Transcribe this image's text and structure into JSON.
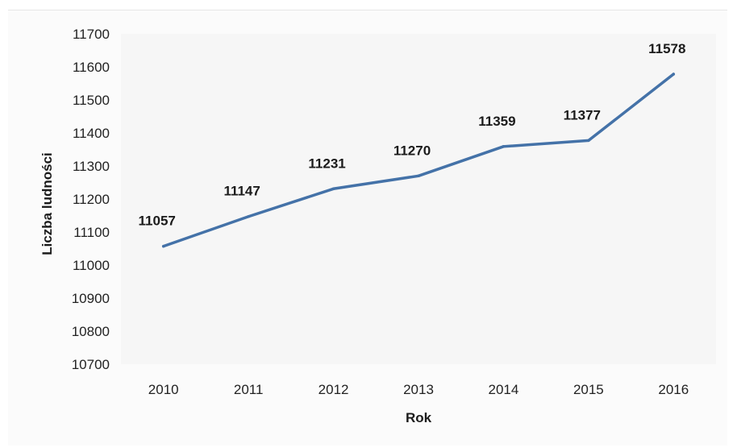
{
  "chart_data": {
    "type": "line",
    "title": "",
    "xlabel": "Rok",
    "ylabel": "Liczba ludności",
    "categories": [
      "2010",
      "2011",
      "2012",
      "2013",
      "2014",
      "2015",
      "2016"
    ],
    "series": [
      {
        "values": [
          11057,
          11147,
          11231,
          11270,
          11359,
          11377,
          11578
        ]
      }
    ],
    "data_labels": [
      "11057",
      "11147",
      "11231",
      "11270",
      "11359",
      "11377",
      "11578"
    ],
    "ylim": [
      10700,
      11700
    ],
    "yticks": [
      "10700",
      "10800",
      "10900",
      "11000",
      "11100",
      "11200",
      "11300",
      "11400",
      "11500",
      "11600",
      "11700"
    ],
    "grid": false,
    "legend": "none",
    "colors": {
      "line": "#4472a8",
      "plot_bg": "#f6f6f6"
    }
  }
}
